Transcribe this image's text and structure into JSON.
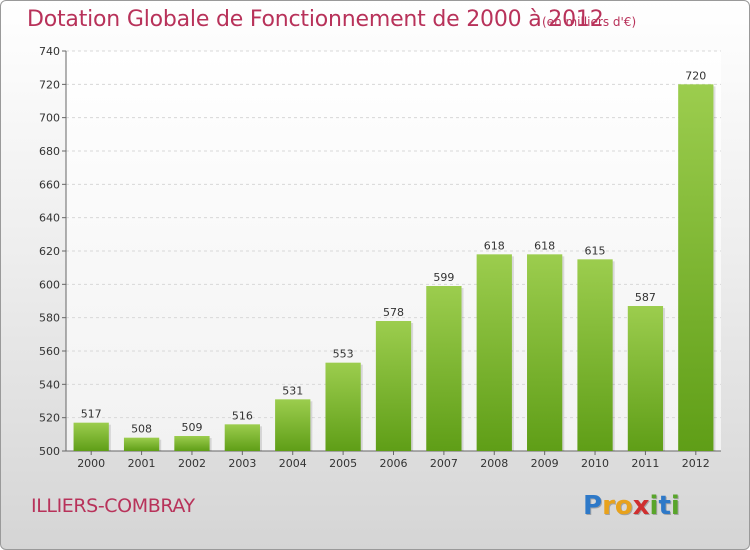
{
  "header": {
    "title": "Dotation Globale de Fonctionnement de 2000 à 2012",
    "subtitle": "(en milliers d'€)"
  },
  "footer": {
    "place": "ILLIERS-COMBRAY",
    "logo": [
      "P",
      "r",
      "o",
      "x",
      "i",
      "t",
      "i"
    ],
    "logo_colors": [
      "#2e79c8",
      "#e8a21c",
      "#e8a21c",
      "#cf2f2f",
      "#59a52b",
      "#2e79c8",
      "#59a52b"
    ]
  },
  "chart_data": {
    "type": "bar",
    "categories": [
      "2000",
      "2001",
      "2002",
      "2003",
      "2004",
      "2005",
      "2006",
      "2007",
      "2008",
      "2009",
      "2010",
      "2011",
      "2012"
    ],
    "values": [
      517,
      508,
      509,
      516,
      531,
      553,
      578,
      599,
      618,
      618,
      615,
      587,
      720
    ],
    "title": "Dotation Globale de Fonctionnement de 2000 à 2012",
    "xlabel": "",
    "ylabel": "",
    "ylim": [
      500,
      740
    ],
    "yticks": [
      500,
      520,
      540,
      560,
      580,
      600,
      620,
      640,
      660,
      680,
      700,
      720,
      740
    ],
    "grid": true,
    "bar_color_top": "#9ccd4e",
    "bar_color_bottom": "#5f9e17"
  }
}
